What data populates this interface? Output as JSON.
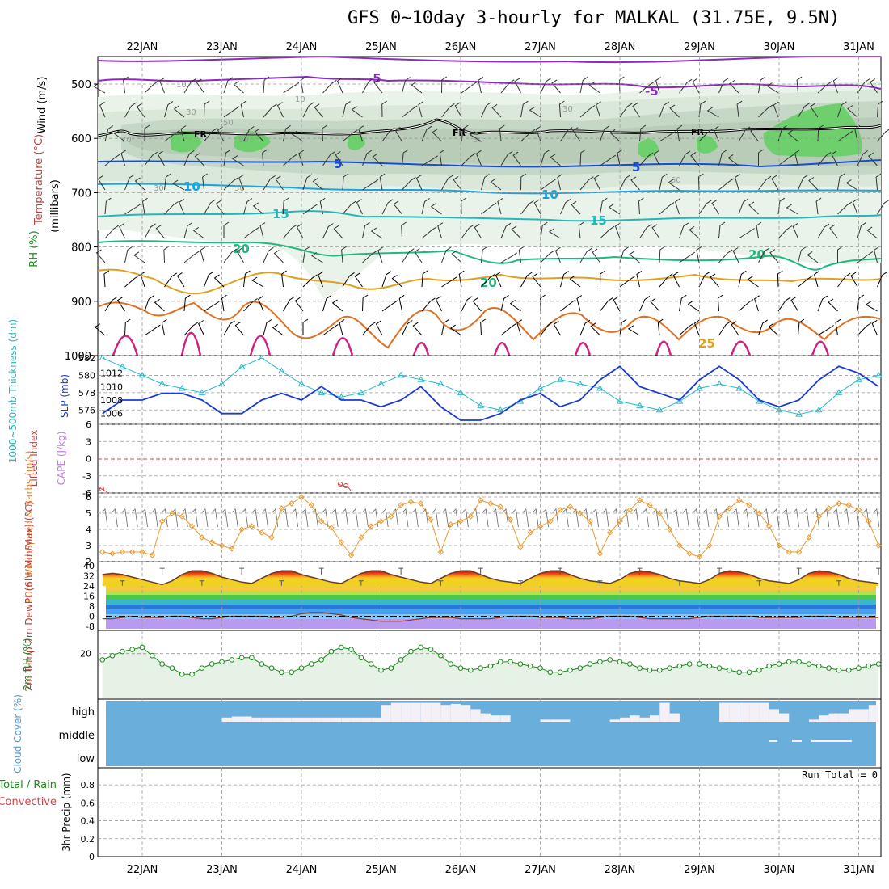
{
  "title": "GFS 0~10day 3-hourly for MALKAL (31.75E, 9.5N)",
  "date_labels": [
    "22JAN",
    "23JAN",
    "24JAN",
    "25JAN",
    "26JAN",
    "27JAN",
    "28JAN",
    "29JAN",
    "30JAN",
    "31JAN"
  ],
  "panels": {
    "upper_air": {
      "ylabel_wind": "Wind (m/s)",
      "ylabel_temp": "Temperature (°C)",
      "ylabel_rh": "RH (%)",
      "ylabel_units": "(millibars)",
      "pressure_ticks": [
        500,
        600,
        700,
        800,
        900,
        1000
      ],
      "contour_labels": [
        "-5",
        "-5",
        "5",
        "5",
        "10",
        "10",
        "15",
        "15",
        "20",
        "20",
        "20",
        "25",
        "FR",
        "FR",
        "FR",
        "FR"
      ],
      "rh_labels": [
        "10",
        "30",
        "50",
        "70",
        "90",
        "10",
        "30",
        "50",
        "30",
        "30",
        "50"
      ]
    },
    "slp": {
      "ylabel_left": "1000~500mb Thickness (dm)",
      "ylabel_right": "SLP (mb)",
      "thickness_ticks": [
        576,
        578,
        580,
        582
      ],
      "slp_ticks": [
        1006,
        1008,
        1010,
        1012
      ]
    },
    "cape": {
      "ylabel_left": "Lifted Index",
      "ylabel_right": "CAPE (J/kg)",
      "ticks": [
        "6",
        "3",
        "0",
        "-3",
        "-6"
      ]
    },
    "wind10m": {
      "ylabel": "10m Wind Speed & Barbs (m/s)",
      "ticks": [
        2,
        3,
        4,
        5,
        6
      ]
    },
    "temp2m": {
      "ylabel": "2m Temp 2m DewPt (6hr Min/Max) (°C)",
      "ticks": [
        -8,
        0,
        8,
        16,
        24,
        32,
        40
      ]
    },
    "rh2m": {
      "ylabel": "2m RH (%)",
      "ticks": [
        20
      ]
    },
    "cloud": {
      "ylabel": "Cloud Cover (%)",
      "levels": [
        "high",
        "middle",
        "low"
      ]
    },
    "precip": {
      "ylabel_left": "Total / Rain",
      "ylabel_left2": "Convective",
      "ylabel_right": "3hr Precip (mm)",
      "ticks": [
        "0",
        "0.2",
        "0.4",
        "0.6",
        "0.8"
      ],
      "run_total": "Run Total = 0"
    }
  },
  "colors": {
    "slp_line": "#1a3ad4",
    "thickness_line": "#2ab8c8",
    "wind_line": "#e89a30",
    "rh_line": "#1a8a1a",
    "rh_fill": "#e6f2e6",
    "cloud_blue": "#6aaedb",
    "cloud_white": "#f4f0f8",
    "fr_line": "#000000",
    "isotherm_m5": "#8a2bbf",
    "isotherm_5": "#1a4bd6",
    "isotherm_10": "#1aa3e0",
    "isotherm_15": "#20b8b8",
    "isotherm_20": "#20b880",
    "isotherm_25": "#e0a020",
    "isotherm_30": "#e07020",
    "isotherm_35": "#d02080"
  },
  "chart_data": [
    {
      "type": "line",
      "title": "1000~500mb Thickness (dm) and SLP (mb)",
      "x_start_hour": -18,
      "x_step_hours": 6,
      "series": [
        {
          "name": "SLP (mb)",
          "axis": "right",
          "values": [
            1006,
            1006,
            1008,
            1008,
            1009,
            1009,
            1008,
            1006,
            1006,
            1008,
            1009,
            1008,
            1010,
            1008,
            1008,
            1007,
            1008,
            1010,
            1007,
            1005,
            1005,
            1006,
            1008,
            1009,
            1007,
            1008,
            1011,
            1013,
            1010,
            1009,
            1008,
            1011,
            1013,
            1011,
            1008,
            1007,
            1008,
            1011,
            1013,
            1012,
            1010,
            1008,
            1009,
            1012,
            1013,
            1010,
            1009,
            1009,
            1011,
            1013,
            1012,
            1010,
            1009,
            1011,
            1013,
            1012,
            1010,
            1009,
            1011,
            1013,
            1012,
            1010,
            1010,
            1011,
            1012,
            1010,
            1010,
            1010,
            1011,
            1013,
            1011,
            1009,
            1010,
            1012,
            1013,
            1012,
            1011,
            1010,
            1011,
            1011
          ]
        },
        {
          "name": "1000~500mb Thickness (dm)",
          "axis": "left",
          "values": [
            580.5,
            582,
            581,
            580,
            579,
            578.5,
            578,
            579,
            581,
            582,
            580.5,
            579,
            578,
            577.5,
            578,
            579,
            580,
            579.5,
            579,
            578,
            576.5,
            576,
            577,
            578.5,
            579.5,
            579,
            578.5,
            577,
            576.5,
            576,
            577,
            578.5,
            579,
            578.5,
            577,
            576,
            575.5,
            576,
            578,
            579.5,
            580,
            579,
            578,
            577,
            576,
            576.5,
            578,
            579.5,
            580,
            579,
            577.5,
            576,
            576.5,
            578,
            579,
            579.5,
            578.5,
            577,
            576.5,
            577,
            578.5,
            579.5,
            579,
            578,
            577,
            576.5,
            577,
            578.5,
            579,
            579,
            578,
            577.5,
            577,
            578,
            579.5,
            579,
            578,
            577.5,
            577.5,
            577
          ]
        }
      ],
      "ylim_left": [
        575,
        582
      ],
      "ylim_right": [
        1005,
        1014
      ]
    },
    {
      "type": "line",
      "title": "10m Wind Speed (m/s)",
      "x_start_hour": -18,
      "x_step_hours": 3,
      "series": [
        {
          "name": "Wind speed (m/s)",
          "values": [
            3,
            2.8,
            2.6,
            2.5,
            2.6,
            2.6,
            2.6,
            2.4,
            4.5,
            5,
            4.8,
            4.2,
            3.5,
            3.2,
            3.0,
            2.8,
            4.0,
            4.2,
            3.8,
            3.5,
            5.3,
            5.6,
            6,
            5.5,
            4.5,
            4.1,
            3.2,
            2.4,
            3.5,
            4.2,
            4.5,
            4.8,
            5.5,
            5.7,
            5.6,
            4.6,
            2.6,
            4.3,
            4.5,
            4.8,
            5.8,
            5.6,
            5.4,
            4.6,
            2.9,
            3.8,
            4.2,
            4.5,
            5.2,
            5.4,
            5.0,
            4.5,
            2.5,
            3.8,
            4.5,
            5.2,
            5.8,
            5.5,
            5.0,
            4.0,
            3.0,
            2.5,
            2.3,
            3.0,
            4.8,
            5.3,
            5.8,
            5.5,
            5.0,
            4.2,
            3.0,
            2.6,
            2.6,
            3.5,
            4.8,
            5.3,
            5.6,
            5.5,
            5.2,
            4.5,
            3.0,
            2.6,
            2.6,
            4.0,
            5.0,
            5.5,
            5.8,
            5.7,
            5.2,
            4.6,
            3.0,
            3.0,
            3.4,
            4.5,
            5.0,
            5.6,
            5.8,
            5.6,
            4.8,
            4.2,
            3.0,
            3.0,
            4.2,
            4.5,
            4.8,
            5.5,
            5.8,
            5.5,
            4.5,
            3.8,
            2.8,
            2.6,
            4.0,
            4.8,
            5.5,
            5.8,
            5.7,
            5.3,
            4.5,
            3.5,
            2.5,
            2.8,
            3.6,
            4.6,
            4.8
          ]
        }
      ],
      "ylim": [
        1.8,
        6.2
      ]
    },
    {
      "type": "line",
      "title": "2m RH (%)",
      "x_start_hour": -18,
      "x_step_hours": 3,
      "series": [
        {
          "name": "2m RH (%)",
          "values": [
            13,
            13.5,
            17,
            19,
            21,
            22,
            23,
            19,
            15,
            13,
            10,
            10,
            13,
            15,
            16,
            17,
            18,
            18,
            15,
            13,
            11,
            11,
            13,
            15,
            17,
            21,
            23,
            22,
            18,
            15,
            12,
            13,
            17,
            21,
            23,
            22,
            19,
            15,
            13,
            12,
            13,
            14,
            16,
            16,
            15,
            14,
            13,
            11,
            11,
            12,
            13,
            15,
            16,
            17,
            16,
            15,
            13,
            12,
            12,
            13,
            14,
            15,
            15,
            14,
            13,
            12,
            11,
            11,
            12,
            14,
            15,
            16,
            16,
            15,
            14,
            13,
            12,
            12,
            13,
            14,
            15,
            16,
            17,
            18,
            19,
            19,
            17,
            15,
            14,
            14,
            15,
            17,
            19,
            19,
            20,
            20,
            18,
            18
          ]
        }
      ],
      "ylim": [
        0,
        30
      ]
    },
    {
      "type": "area",
      "title": "2m Temp / 2m DewPt (°C)",
      "x_start_hour": -18,
      "x_step_hours": 3,
      "series": [
        {
          "name": "2m Temp (°C)",
          "values": [
            29,
            31,
            33,
            34,
            33,
            31,
            29,
            27,
            25,
            28,
            33,
            36,
            36,
            34,
            31,
            29,
            27,
            26,
            30,
            34,
            36,
            36,
            33,
            31,
            29,
            27,
            26,
            30,
            34,
            36,
            36,
            33,
            31,
            29,
            27,
            26,
            30,
            34,
            36,
            36,
            33,
            30,
            28,
            27,
            26,
            30,
            34,
            36,
            36,
            33,
            30,
            28,
            27,
            26,
            29,
            34,
            36,
            35,
            33,
            30,
            28,
            27,
            26,
            29,
            34,
            36,
            35,
            33,
            30,
            28,
            27,
            26,
            29,
            34,
            36,
            35,
            33,
            30,
            28,
            27,
            26
          ]
        },
        {
          "name": "2m DewPt (°C)",
          "values": [
            -1,
            -1,
            -2,
            -2,
            -1,
            0,
            -1,
            -1,
            -1,
            0,
            0,
            -1,
            -2,
            -2,
            -1,
            0,
            0,
            0,
            0,
            -1,
            -1,
            0,
            2,
            3,
            3,
            2,
            1,
            -1,
            -2,
            -3,
            -4,
            -4,
            -4,
            -3,
            -2,
            -1,
            -1,
            -1,
            -2,
            -2,
            -2,
            -2,
            -1,
            0,
            0,
            0,
            -1,
            -1,
            -1,
            -2,
            -2,
            -2,
            -1,
            0,
            0,
            0,
            -1,
            -2,
            -2,
            -2,
            -2,
            -2,
            -1,
            0,
            0,
            0,
            0,
            0,
            -1,
            -1,
            -1,
            -1,
            -1,
            0,
            0,
            0,
            -1,
            -1,
            -1,
            -1,
            -1
          ]
        }
      ],
      "ylim": [
        -8,
        40
      ]
    },
    {
      "type": "bar",
      "title": "Cloud Cover high level (%)",
      "x_start_hour": -18,
      "x_step_hours": 3,
      "series": [
        {
          "name": "high cloud",
          "values": [
            0,
            0,
            0,
            0,
            0,
            0,
            0,
            0,
            0,
            0,
            0,
            0,
            0,
            0,
            20,
            25,
            25,
            20,
            20,
            20,
            20,
            20,
            20,
            20,
            20,
            20,
            20,
            20,
            20,
            20,
            80,
            90,
            90,
            90,
            90,
            90,
            80,
            85,
            80,
            60,
            40,
            30,
            30,
            0,
            0,
            0,
            10,
            10,
            10,
            0,
            0,
            0,
            0,
            10,
            20,
            30,
            20,
            30,
            90,
            40,
            0,
            0,
            0,
            0,
            90,
            90,
            90,
            90,
            90,
            60,
            40,
            0,
            0,
            10,
            30,
            40,
            40,
            60,
            60,
            80,
            80,
            60,
            40,
            60,
            40,
            20,
            90,
            90,
            90,
            90,
            80,
            60,
            90,
            90,
            90,
            90,
            0,
            0,
            0,
            0,
            0,
            0,
            0,
            0,
            0,
            0,
            0,
            0,
            0,
            0,
            0,
            0
          ]
        }
      ]
    },
    {
      "type": "bar",
      "title": "3hr Precip (mm)",
      "x_start_hour": -18,
      "x_step_hours": 3,
      "series": [
        {
          "name": "Total / Rain",
          "values": []
        }
      ],
      "ylim": [
        0,
        0.9
      ]
    }
  ]
}
